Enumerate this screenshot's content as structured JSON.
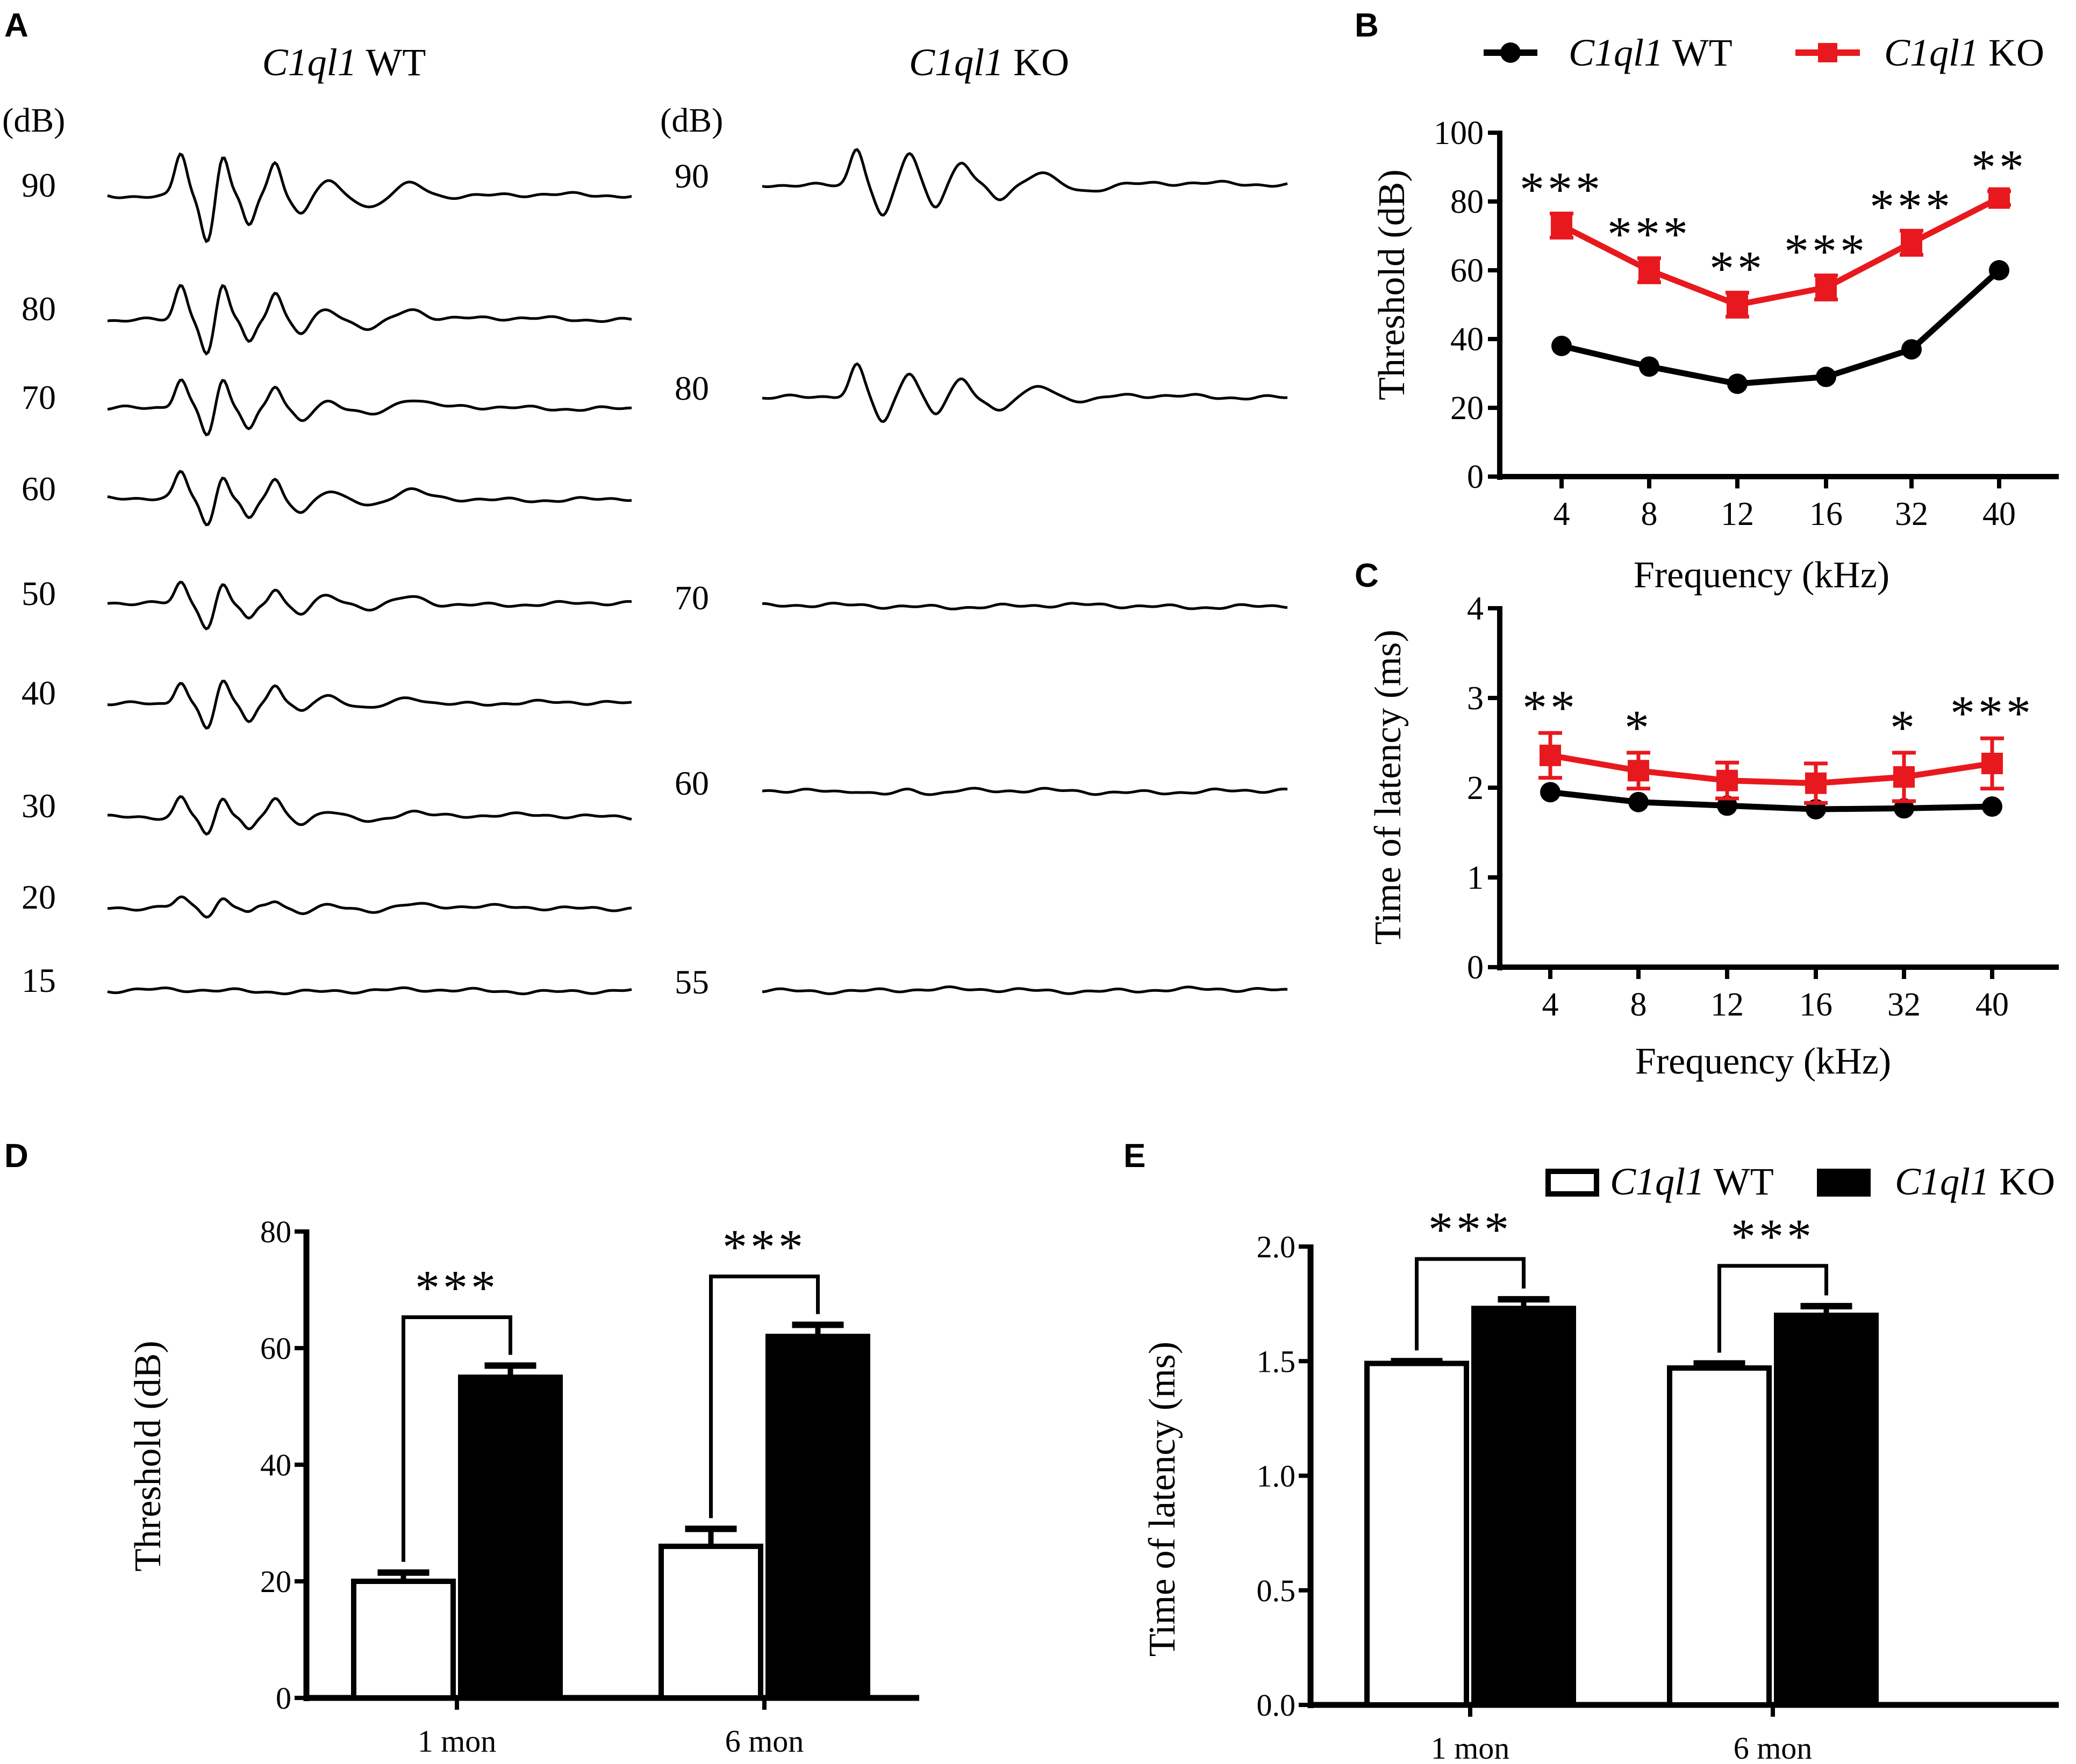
{
  "panel_labels": {
    "a": "A",
    "b": "B",
    "c": "C",
    "d": "D",
    "e": "E"
  },
  "panel_a": {
    "wt_title_gene": "C1ql1",
    "wt_title_suffix": " WT",
    "ko_title_gene": "C1ql1",
    "ko_title_suffix": " KO",
    "unit": "(dB)",
    "wt_levels": [
      "90",
      "80",
      "70",
      "60",
      "50",
      "40",
      "30",
      "20",
      "15"
    ],
    "ko_levels": [
      "90",
      "80",
      "70",
      "60",
      "55"
    ],
    "wt_responses": [
      1.0,
      0.8,
      0.65,
      0.6,
      0.5,
      0.55,
      0.45,
      0.2,
      0.0
    ],
    "ko_responses": [
      0.85,
      0.7,
      0.0,
      0.05,
      0.0
    ]
  },
  "legend": {
    "wt_gene": "C1ql1",
    "wt_suffix": " WT",
    "ko_gene": "C1ql1",
    "ko_suffix": " KO"
  },
  "colors": {
    "wt": "#000000",
    "ko": "#e8191e",
    "wt_bar": "#ffffff",
    "ko_bar": "#000000"
  },
  "chart_data": [
    {
      "id": "B",
      "type": "line",
      "categories": [
        "4",
        "8",
        "12",
        "16",
        "32",
        "40"
      ],
      "xlabel": "Frequency (kHz)",
      "ylabel": "Threshold (dB)",
      "ylim": [
        0,
        100
      ],
      "yticks": [
        "0",
        "20",
        "40",
        "60",
        "80",
        "100"
      ],
      "series": [
        {
          "name": "C1ql1 WT",
          "values": [
            38,
            32,
            27,
            29,
            37,
            60
          ],
          "errors": [
            0,
            0,
            0,
            0,
            0,
            0
          ]
        },
        {
          "name": "C1ql1 KO",
          "values": [
            73,
            60,
            50,
            55,
            68,
            81
          ],
          "errors": [
            3.5,
            3.5,
            3.5,
            3.5,
            3.5,
            2.0
          ]
        }
      ],
      "annotations": [
        "***",
        "***",
        "**",
        "***",
        "***",
        "**"
      ]
    },
    {
      "id": "C",
      "type": "line",
      "categories": [
        "4",
        "8",
        "12",
        "16",
        "32",
        "40"
      ],
      "xlabel": "Frequency (kHz)",
      "ylabel": "Time of latency (ms)",
      "ylim": [
        0,
        4
      ],
      "yticks": [
        "0",
        "1",
        "2",
        "3",
        "4"
      ],
      "series": [
        {
          "name": "C1ql1 WT",
          "values": [
            1.95,
            1.84,
            1.8,
            1.76,
            1.77,
            1.79
          ],
          "errors": [
            0,
            0,
            0,
            0,
            0,
            0
          ]
        },
        {
          "name": "C1ql1 KO",
          "values": [
            2.36,
            2.19,
            2.08,
            2.05,
            2.12,
            2.27
          ],
          "errors": [
            0.25,
            0.2,
            0.2,
            0.22,
            0.27,
            0.28
          ]
        }
      ],
      "annotations": [
        "**",
        "*",
        "",
        "",
        "*",
        "***"
      ]
    },
    {
      "id": "D",
      "type": "bar",
      "categories": [
        "1 mon",
        "6 mon"
      ],
      "ylabel": "Threshold (dB)",
      "ylim": [
        0,
        80
      ],
      "yticks": [
        "0",
        "20",
        "40",
        "60",
        "80"
      ],
      "series": [
        {
          "name": "C1ql1 WT",
          "values": [
            20,
            26
          ],
          "errors": [
            1.5,
            3.0
          ]
        },
        {
          "name": "C1ql1 KO",
          "values": [
            55,
            62
          ],
          "errors": [
            2.0,
            2.0
          ]
        }
      ],
      "annotations": [
        "***",
        "***"
      ]
    },
    {
      "id": "E",
      "type": "bar",
      "categories": [
        "1 mon",
        "6 mon"
      ],
      "ylabel": "Time of latency (ms)",
      "ylim": [
        0,
        2.0
      ],
      "yticks": [
        "0.0",
        "0.5",
        "1.0",
        "1.5",
        "2.0"
      ],
      "series": [
        {
          "name": "C1ql1 WT",
          "values": [
            1.49,
            1.47
          ],
          "errors": [
            0.01,
            0.02
          ]
        },
        {
          "name": "C1ql1 KO",
          "values": [
            1.73,
            1.7
          ],
          "errors": [
            0.04,
            0.04
          ]
        }
      ],
      "annotations": [
        "***",
        "***"
      ]
    }
  ]
}
